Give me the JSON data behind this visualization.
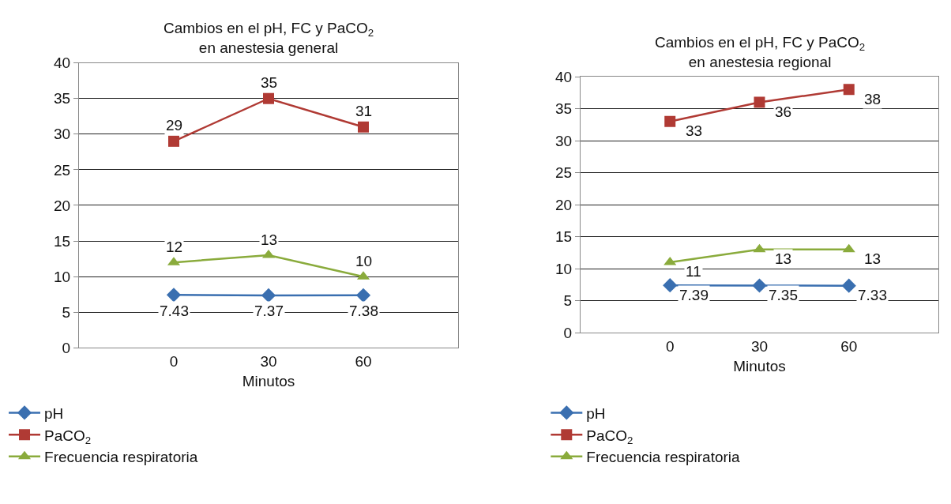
{
  "chart_data": [
    {
      "type": "line",
      "title": "Cambios en el pH, FC y PaCO$_{2}$\nen anestesia general",
      "xlabel": "Minutos",
      "categories": [
        "0",
        "30",
        "60"
      ],
      "ylim": [
        0,
        40
      ],
      "yticks": [
        0,
        5,
        10,
        15,
        20,
        25,
        30,
        35,
        40
      ],
      "grid": "y",
      "legend": "bottom",
      "data_labels": true,
      "series": [
        {
          "name": "pH",
          "color": "#3a6fb0",
          "marker": "diamond",
          "values": [
            7.43,
            7.37,
            7.38
          ]
        },
        {
          "name": "PaCO$_{2}$",
          "color": "#b03a34",
          "marker": "square",
          "values": [
            29,
            35,
            31
          ]
        },
        {
          "name": "Frecuencia respiratoria",
          "color": "#8aab3c",
          "marker": "triangle",
          "values": [
            12,
            13,
            10
          ]
        }
      ]
    },
    {
      "type": "line",
      "title": "Cambios en el pH, FC y PaCO$_{2}$\nen anestesia regional",
      "xlabel": "Minutos",
      "categories": [
        "0",
        "30",
        "60"
      ],
      "ylim": [
        0,
        40
      ],
      "yticks": [
        0,
        5,
        10,
        15,
        20,
        25,
        30,
        35,
        40
      ],
      "grid": "y",
      "legend": "bottom",
      "data_labels": true,
      "series": [
        {
          "name": "pH",
          "color": "#3a6fb0",
          "marker": "diamond",
          "values": [
            7.39,
            7.35,
            7.33
          ]
        },
        {
          "name": "PaCO$_{2}$",
          "color": "#b03a34",
          "marker": "square",
          "values": [
            33,
            36,
            38
          ]
        },
        {
          "name": "Frecuencia respiratoria",
          "color": "#8aab3c",
          "marker": "triangle",
          "values": [
            11,
            13,
            13
          ]
        }
      ]
    }
  ]
}
